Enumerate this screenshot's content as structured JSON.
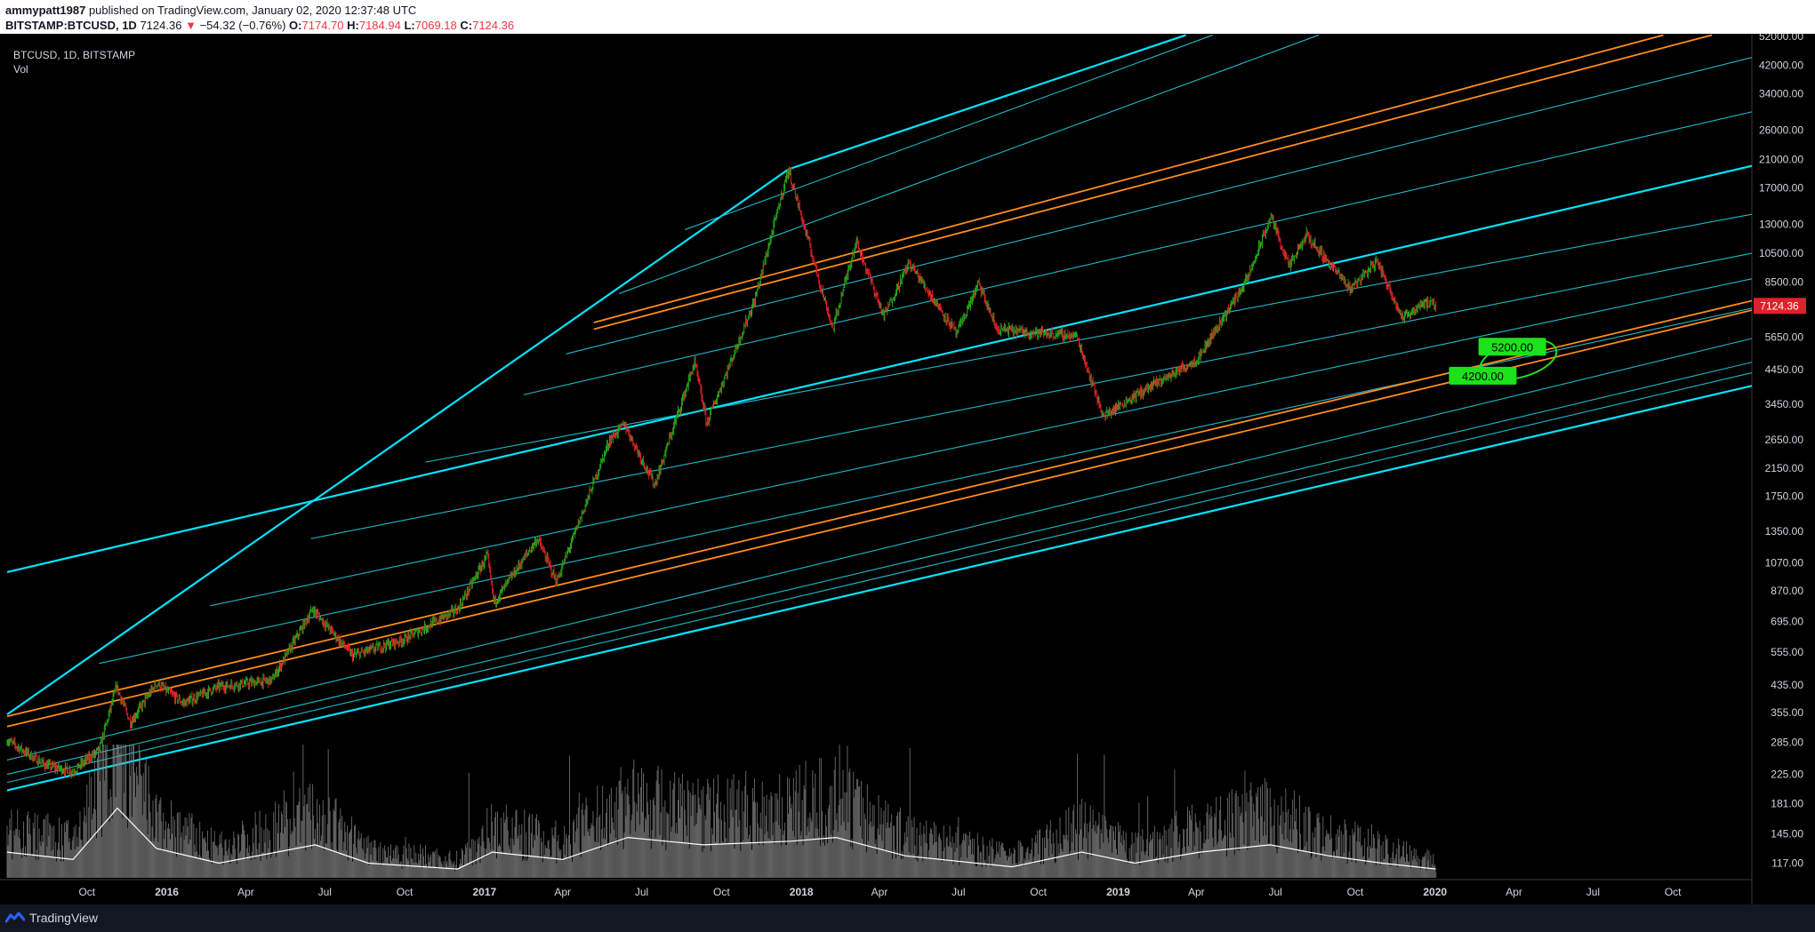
{
  "header": {
    "author": "ammypatt1987",
    "published_text": "published on TradingView.com, January 02, 2020 12:37:48 UTC",
    "symbol": "BITSTAMP:BTCUSD, 1D",
    "last": "7124.36",
    "change_arrow": "▼",
    "change": "−54.32 (−0.76%)",
    "o_label": "O:",
    "o": "7174.70",
    "h_label": "H:",
    "h": "7184.94",
    "l_label": "L:",
    "l": "7069.18",
    "c_label": "C:",
    "c": "7124.36"
  },
  "legend": {
    "title": "BTCUSD, 1D, BITSTAMP",
    "indicator": "Vol"
  },
  "footer": {
    "brand": "TradingView"
  },
  "colors": {
    "bg": "#000000",
    "up": "#26a91a",
    "down": "#e0202a",
    "volume": "#8a8a8a",
    "volume_ma": "#ffffff",
    "channel_main": "#00e5ff",
    "channel_inner": "#1fb9c9",
    "channel_orange": "#ff8c1a",
    "label_green": "#1be21b",
    "price_tag": "#e0202a",
    "axis_text": "#d1d4dc"
  },
  "chart_data": {
    "type": "candlestick",
    "series": [
      {
        "name": "BTCUSD",
        "values": [
          [
            "2015-07-01",
            290
          ],
          [
            "2015-08-15",
            240
          ],
          [
            "2015-09-15",
            230
          ],
          [
            "2015-10-15",
            270
          ],
          [
            "2015-11-04",
            430
          ],
          [
            "2015-11-20",
            330
          ],
          [
            "2015-12-20",
            440
          ],
          [
            "2016-01-20",
            380
          ],
          [
            "2016-03-01",
            430
          ],
          [
            "2016-05-01",
            450
          ],
          [
            "2016-06-17",
            760
          ],
          [
            "2016-08-02",
            540
          ],
          [
            "2016-10-01",
            610
          ],
          [
            "2016-12-01",
            760
          ],
          [
            "2017-01-04",
            1130
          ],
          [
            "2017-01-12",
            800
          ],
          [
            "2017-03-03",
            1280
          ],
          [
            "2017-03-25",
            930
          ],
          [
            "2017-05-25",
            2650
          ],
          [
            "2017-06-11",
            2980
          ],
          [
            "2017-07-16",
            1900
          ],
          [
            "2017-08-31",
            4700
          ],
          [
            "2017-09-14",
            3000
          ],
          [
            "2017-11-08",
            7400
          ],
          [
            "2017-12-17",
            19500
          ],
          [
            "2018-02-06",
            6000
          ],
          [
            "2018-03-05",
            11500
          ],
          [
            "2018-04-06",
            6600
          ],
          [
            "2018-05-05",
            9800
          ],
          [
            "2018-06-29",
            5800
          ],
          [
            "2018-07-24",
            8400
          ],
          [
            "2018-08-14",
            6000
          ],
          [
            "2018-11-14",
            5700
          ],
          [
            "2018-12-15",
            3150
          ],
          [
            "2019-01-15",
            3600
          ],
          [
            "2019-04-02",
            4800
          ],
          [
            "2019-05-30",
            8700
          ],
          [
            "2019-06-26",
            13800
          ],
          [
            "2019-07-17",
            9500
          ],
          [
            "2019-08-06",
            12000
          ],
          [
            "2019-09-25",
            8100
          ],
          [
            "2019-10-26",
            9900
          ],
          [
            "2019-11-25",
            6500
          ],
          [
            "2019-12-18",
            7300
          ],
          [
            "2020-01-02",
            7124.36
          ]
        ]
      }
    ],
    "volume_ma": [
      [
        "2015-07-01",
        0.35
      ],
      [
        "2015-09-15",
        0.25
      ],
      [
        "2015-11-05",
        0.95
      ],
      [
        "2015-12-20",
        0.4
      ],
      [
        "2016-03-01",
        0.2
      ],
      [
        "2016-06-20",
        0.45
      ],
      [
        "2016-08-20",
        0.2
      ],
      [
        "2016-12-01",
        0.12
      ],
      [
        "2017-01-10",
        0.35
      ],
      [
        "2017-04-01",
        0.25
      ],
      [
        "2017-06-15",
        0.55
      ],
      [
        "2017-09-10",
        0.45
      ],
      [
        "2017-12-20",
        0.5
      ],
      [
        "2018-02-10",
        0.55
      ],
      [
        "2018-05-01",
        0.3
      ],
      [
        "2018-09-01",
        0.15
      ],
      [
        "2018-11-20",
        0.35
      ],
      [
        "2019-01-20",
        0.2
      ],
      [
        "2019-04-05",
        0.35
      ],
      [
        "2019-06-25",
        0.45
      ],
      [
        "2019-09-01",
        0.3
      ],
      [
        "2019-11-01",
        0.2
      ],
      [
        "2020-01-02",
        0.12
      ]
    ],
    "x_ticks": [
      "Oct",
      "2016",
      "Apr",
      "Jul",
      "Oct",
      "2017",
      "Apr",
      "Jul",
      "Oct",
      "2018",
      "Apr",
      "Jul",
      "Oct",
      "2019",
      "Apr",
      "Jul",
      "Oct",
      "2020",
      "Apr",
      "Jul",
      "Oct"
    ],
    "x_tick_dates": [
      "2015-10-01",
      "2016-01-01",
      "2016-04-01",
      "2016-07-01",
      "2016-10-01",
      "2017-01-01",
      "2017-04-01",
      "2017-07-01",
      "2017-10-01",
      "2018-01-01",
      "2018-04-01",
      "2018-07-01",
      "2018-10-01",
      "2019-01-01",
      "2019-04-01",
      "2019-07-01",
      "2019-10-01",
      "2020-01-01",
      "2020-04-01",
      "2020-07-01",
      "2020-10-01"
    ],
    "y_ticks": [
      "52000.00",
      "42000.00",
      "34000.00",
      "26000.00",
      "21000.00",
      "17000.00",
      "13000.00",
      "10500.00",
      "8500.00",
      "5650.00",
      "4450.00",
      "3450.00",
      "2650.00",
      "2150.00",
      "1750.00",
      "1350.00",
      "1070.00",
      "870.00",
      "695.00",
      "555.00",
      "435.00",
      "355.00",
      "285.00",
      "225.00",
      "181.00",
      "145.00",
      "117.00"
    ],
    "y_scale": "log",
    "xlim": [
      "2015-07-01",
      "2020-12-31"
    ],
    "ylim": [
      112,
      53000
    ],
    "last_price_label": "7124.36",
    "annotations": [
      {
        "text": "4200.00",
        "date": "2020-02-25",
        "price": 4200
      },
      {
        "text": "5200.00",
        "date": "2020-03-30",
        "price": 5200
      }
    ],
    "channel_lines": [
      {
        "type": "main",
        "from": [
          "2015-07-01",
          350
        ],
        "to": [
          "2017-12-17",
          19500
        ]
      },
      {
        "type": "main",
        "from": [
          "2017-12-17",
          19500
        ],
        "to": [
          "2019-03-20",
          52500
        ]
      },
      {
        "type": "inner",
        "from": [
          "2017-08-20",
          12500
        ],
        "to": [
          "2019-04-20",
          52500
        ]
      },
      {
        "type": "inner",
        "from": [
          "2017-06-05",
          7800
        ],
        "to": [
          "2019-08-20",
          52500
        ]
      },
      {
        "type": "orange",
        "from": [
          "2017-05-07",
          6300
        ],
        "to": [
          "2020-09-20",
          52500
        ]
      },
      {
        "type": "orange",
        "from": [
          "2017-05-07",
          6000
        ],
        "to": [
          "2020-11-15",
          52500
        ]
      },
      {
        "type": "inner",
        "from": [
          "2017-04-05",
          5000
        ],
        "to": [
          "2020-12-31",
          44500
        ]
      },
      {
        "type": "inner",
        "from": [
          "2017-02-15",
          3700
        ],
        "to": [
          "2020-12-31",
          29800
        ]
      },
      {
        "type": "main",
        "from": [
          "2015-07-01",
          1000
        ],
        "to": [
          "2020-12-31",
          20000
        ]
      },
      {
        "type": "inner",
        "from": [
          "2016-10-25",
          2250
        ],
        "to": [
          "2020-12-31",
          14000
        ]
      },
      {
        "type": "inner",
        "from": [
          "2016-06-15",
          1280
        ],
        "to": [
          "2020-12-31",
          10500
        ]
      },
      {
        "type": "inner",
        "from": [
          "2016-02-20",
          780
        ],
        "to": [
          "2020-12-31",
          8700
        ]
      },
      {
        "type": "inner",
        "from": [
          "2015-10-15",
          510
        ],
        "to": [
          "2020-12-31",
          7000
        ]
      },
      {
        "type": "orange",
        "from": [
          "2015-07-01",
          345
        ],
        "to": [
          "2020-12-31",
          7400
        ]
      },
      {
        "type": "orange",
        "from": [
          "2015-07-01",
          320
        ],
        "to": [
          "2020-12-31",
          6900
        ]
      },
      {
        "type": "inner",
        "from": [
          "2015-07-01",
          250
        ],
        "to": [
          "2020-12-31",
          5600
        ]
      },
      {
        "type": "inner",
        "from": [
          "2015-07-01",
          225
        ],
        "to": [
          "2020-12-31",
          4700
        ]
      },
      {
        "type": "inner",
        "from": [
          "2015-07-01",
          212
        ],
        "to": [
          "2020-12-31",
          4350
        ]
      },
      {
        "type": "main",
        "from": [
          "2015-07-01",
          200
        ],
        "to": [
          "2020-12-31",
          3950
        ]
      }
    ]
  }
}
